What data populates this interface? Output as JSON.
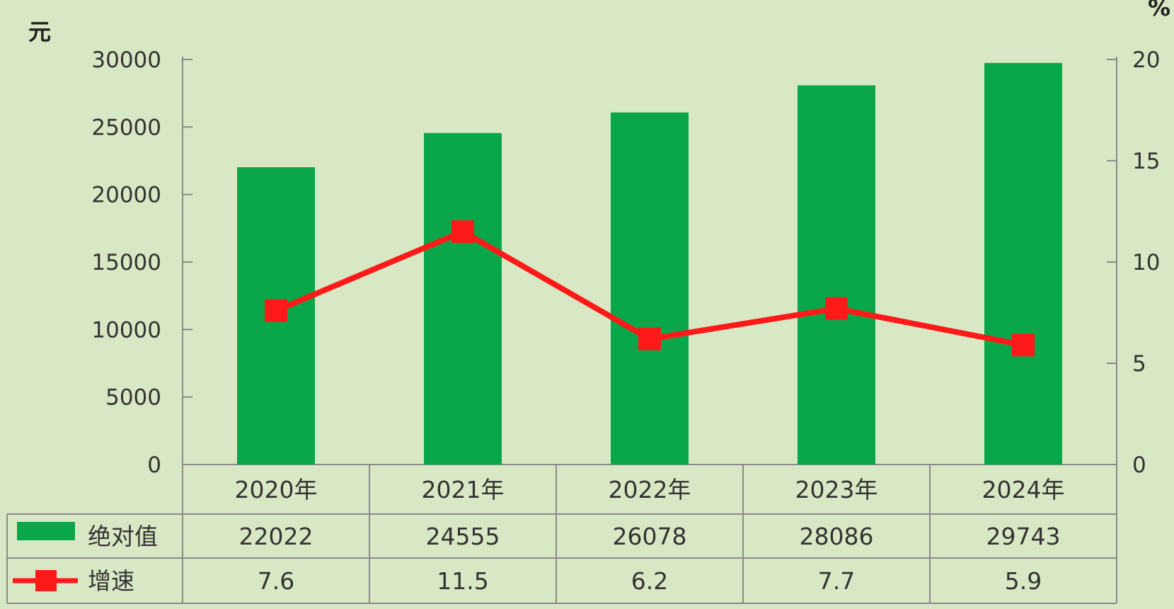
{
  "chart_data": {
    "type": "bar",
    "categories": [
      "2020年",
      "2021年",
      "2022年",
      "2023年",
      "2024年"
    ],
    "y_left": {
      "unit": "元",
      "ticks": [
        0,
        5000,
        10000,
        15000,
        20000,
        25000,
        30000
      ],
      "range": [
        0,
        30000
      ]
    },
    "y_right": {
      "unit": "%",
      "ticks": [
        0,
        5,
        10,
        15,
        20
      ],
      "range": [
        0,
        20
      ]
    },
    "series": [
      {
        "name": "绝对值",
        "type": "bar",
        "axis": "left",
        "color": "#0aa64a",
        "values": [
          22022,
          24555,
          26078,
          28086,
          29743
        ]
      },
      {
        "name": "增速",
        "type": "line",
        "axis": "right",
        "color": "#ff1a1a",
        "marker": "square",
        "values": [
          7.6,
          11.5,
          6.2,
          7.7,
          5.9
        ]
      }
    ],
    "table_labels": [
      "22022",
      "24555",
      "26078",
      "28086",
      "29743",
      "7.6",
      "11.5",
      "6.2",
      "7.7",
      "5.9"
    ],
    "legend_placement": "data table below chart"
  }
}
